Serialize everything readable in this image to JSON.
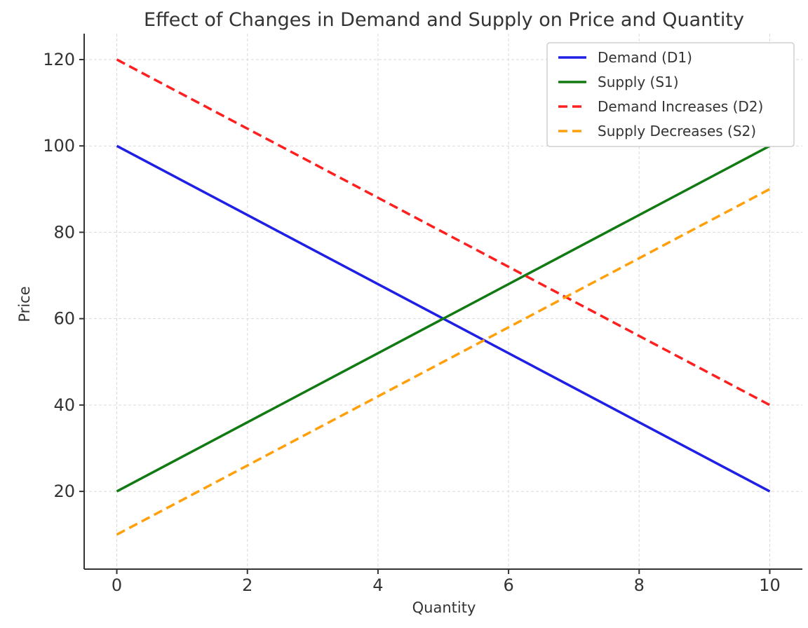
{
  "chart_data": {
    "type": "line",
    "title": "Effect of Changes in Demand and Supply on Price and Quantity",
    "xlabel": "Quantity",
    "ylabel": "Price",
    "xlim": [
      -0.5,
      10.5
    ],
    "ylim": [
      2,
      126
    ],
    "x_ticks": [
      0,
      2,
      4,
      6,
      8,
      10
    ],
    "y_ticks": [
      20,
      40,
      60,
      80,
      100,
      120
    ],
    "grid": true,
    "legend_position": "top-right",
    "series": [
      {
        "name": "Demand (D1)",
        "color": "#1f1fe6",
        "style": "solid",
        "x": [
          0,
          10
        ],
        "y": [
          100,
          20
        ]
      },
      {
        "name": "Supply (S1)",
        "color": "#127a12",
        "style": "solid",
        "x": [
          0,
          10
        ],
        "y": [
          20,
          100
        ]
      },
      {
        "name": "Demand Increases (D2)",
        "color": "#ff1f1f",
        "style": "dashed",
        "x": [
          0,
          10
        ],
        "y": [
          120,
          40
        ]
      },
      {
        "name": "Supply Decreases (S2)",
        "color": "#ff9f0a",
        "style": "dashed",
        "x": [
          0,
          10
        ],
        "y": [
          10,
          90
        ]
      }
    ]
  }
}
